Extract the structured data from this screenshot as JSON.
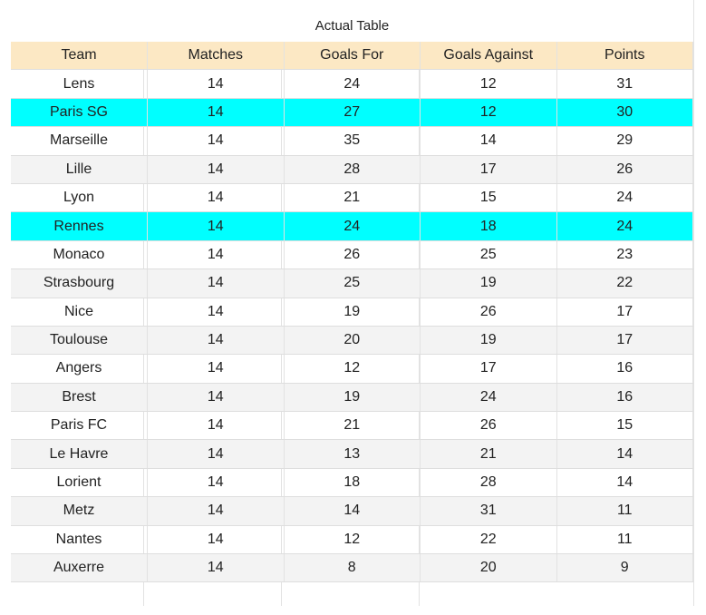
{
  "title": "Actual Table",
  "headers": [
    "Team",
    "Matches",
    "Goals For",
    "Goals Against",
    "Points"
  ],
  "highlight_color": "#00ffff",
  "header_color": "#fce8c4",
  "rows": [
    {
      "team": "Lens",
      "matches": "14",
      "gf": "24",
      "ga": "12",
      "pts": "31",
      "highlighted": false
    },
    {
      "team": "Paris SG",
      "matches": "14",
      "gf": "27",
      "ga": "12",
      "pts": "30",
      "highlighted": true
    },
    {
      "team": "Marseille",
      "matches": "14",
      "gf": "35",
      "ga": "14",
      "pts": "29",
      "highlighted": false
    },
    {
      "team": "Lille",
      "matches": "14",
      "gf": "28",
      "ga": "17",
      "pts": "26",
      "highlighted": false
    },
    {
      "team": "Lyon",
      "matches": "14",
      "gf": "21",
      "ga": "15",
      "pts": "24",
      "highlighted": false
    },
    {
      "team": "Rennes",
      "matches": "14",
      "gf": "24",
      "ga": "18",
      "pts": "24",
      "highlighted": true
    },
    {
      "team": "Monaco",
      "matches": "14",
      "gf": "26",
      "ga": "25",
      "pts": "23",
      "highlighted": false
    },
    {
      "team": "Strasbourg",
      "matches": "14",
      "gf": "25",
      "ga": "19",
      "pts": "22",
      "highlighted": false
    },
    {
      "team": "Nice",
      "matches": "14",
      "gf": "19",
      "ga": "26",
      "pts": "17",
      "highlighted": false
    },
    {
      "team": "Toulouse",
      "matches": "14",
      "gf": "20",
      "ga": "19",
      "pts": "17",
      "highlighted": false
    },
    {
      "team": "Angers",
      "matches": "14",
      "gf": "12",
      "ga": "17",
      "pts": "16",
      "highlighted": false
    },
    {
      "team": "Brest",
      "matches": "14",
      "gf": "19",
      "ga": "24",
      "pts": "16",
      "highlighted": false
    },
    {
      "team": "Paris FC",
      "matches": "14",
      "gf": "21",
      "ga": "26",
      "pts": "15",
      "highlighted": false
    },
    {
      "team": "Le Havre",
      "matches": "14",
      "gf": "13",
      "ga": "21",
      "pts": "14",
      "highlighted": false
    },
    {
      "team": "Lorient",
      "matches": "14",
      "gf": "18",
      "ga": "28",
      "pts": "14",
      "highlighted": false
    },
    {
      "team": "Metz",
      "matches": "14",
      "gf": "14",
      "ga": "31",
      "pts": "11",
      "highlighted": false
    },
    {
      "team": "Nantes",
      "matches": "14",
      "gf": "12",
      "ga": "22",
      "pts": "11",
      "highlighted": false
    },
    {
      "team": "Auxerre",
      "matches": "14",
      "gf": "8",
      "ga": "20",
      "pts": "9",
      "highlighted": false
    }
  ]
}
